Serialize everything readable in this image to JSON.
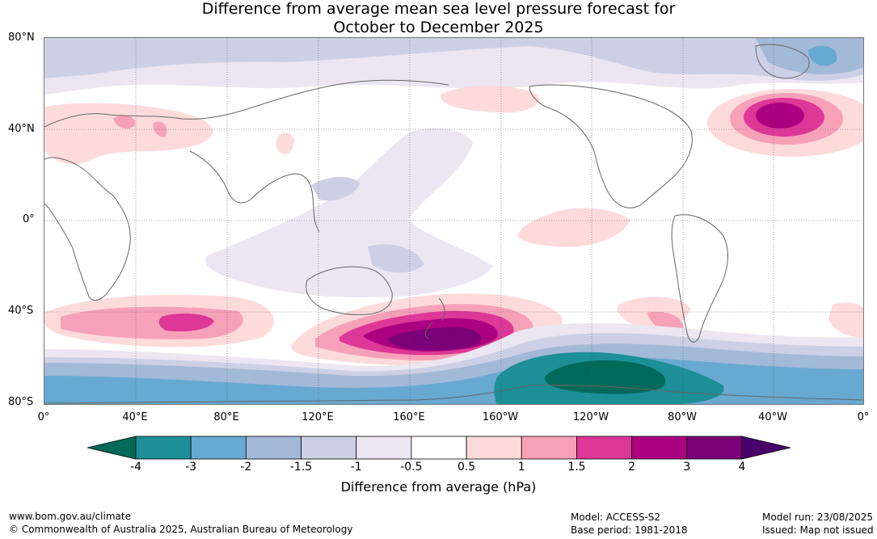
{
  "title": {
    "line1": "Difference from average mean sea level pressure forecast for",
    "line2": "October to December 2025"
  },
  "map": {
    "lat_labels": [
      "80°N",
      "40°N",
      "0°",
      "40°S",
      "80°S"
    ],
    "lon_labels": [
      "0°",
      "40°E",
      "80°E",
      "120°E",
      "160°E",
      "160°W",
      "120°W",
      "80°W",
      "40°W",
      "0°"
    ]
  },
  "legend": {
    "title": "Difference from average (hPa)",
    "ticks": [
      "-4",
      "-3",
      "-2",
      "-1.5",
      "-1",
      "-0.5",
      "0.5",
      "1",
      "1.5",
      "2",
      "3",
      "4"
    ],
    "colors": [
      "#006a5a",
      "#1d8f96",
      "#68a9d1",
      "#a3b9d8",
      "#cdd0e5",
      "#ece6f2",
      "#ffffff",
      "#fddbdb",
      "#f7a1b9",
      "#dd3797",
      "#ab007f",
      "#7a0177",
      "#49006a"
    ]
  },
  "footer": {
    "website": "www.bom.gov.au/climate",
    "copyright": "© Commonwealth of Australia 2025, Australian Bureau of Meteorology",
    "model": "Model: ACCESS-S2",
    "base_period": "Base period: 1981-2018",
    "model_run": "Model run: 23/08/2025",
    "issued": "Issued: Map not issued"
  }
}
